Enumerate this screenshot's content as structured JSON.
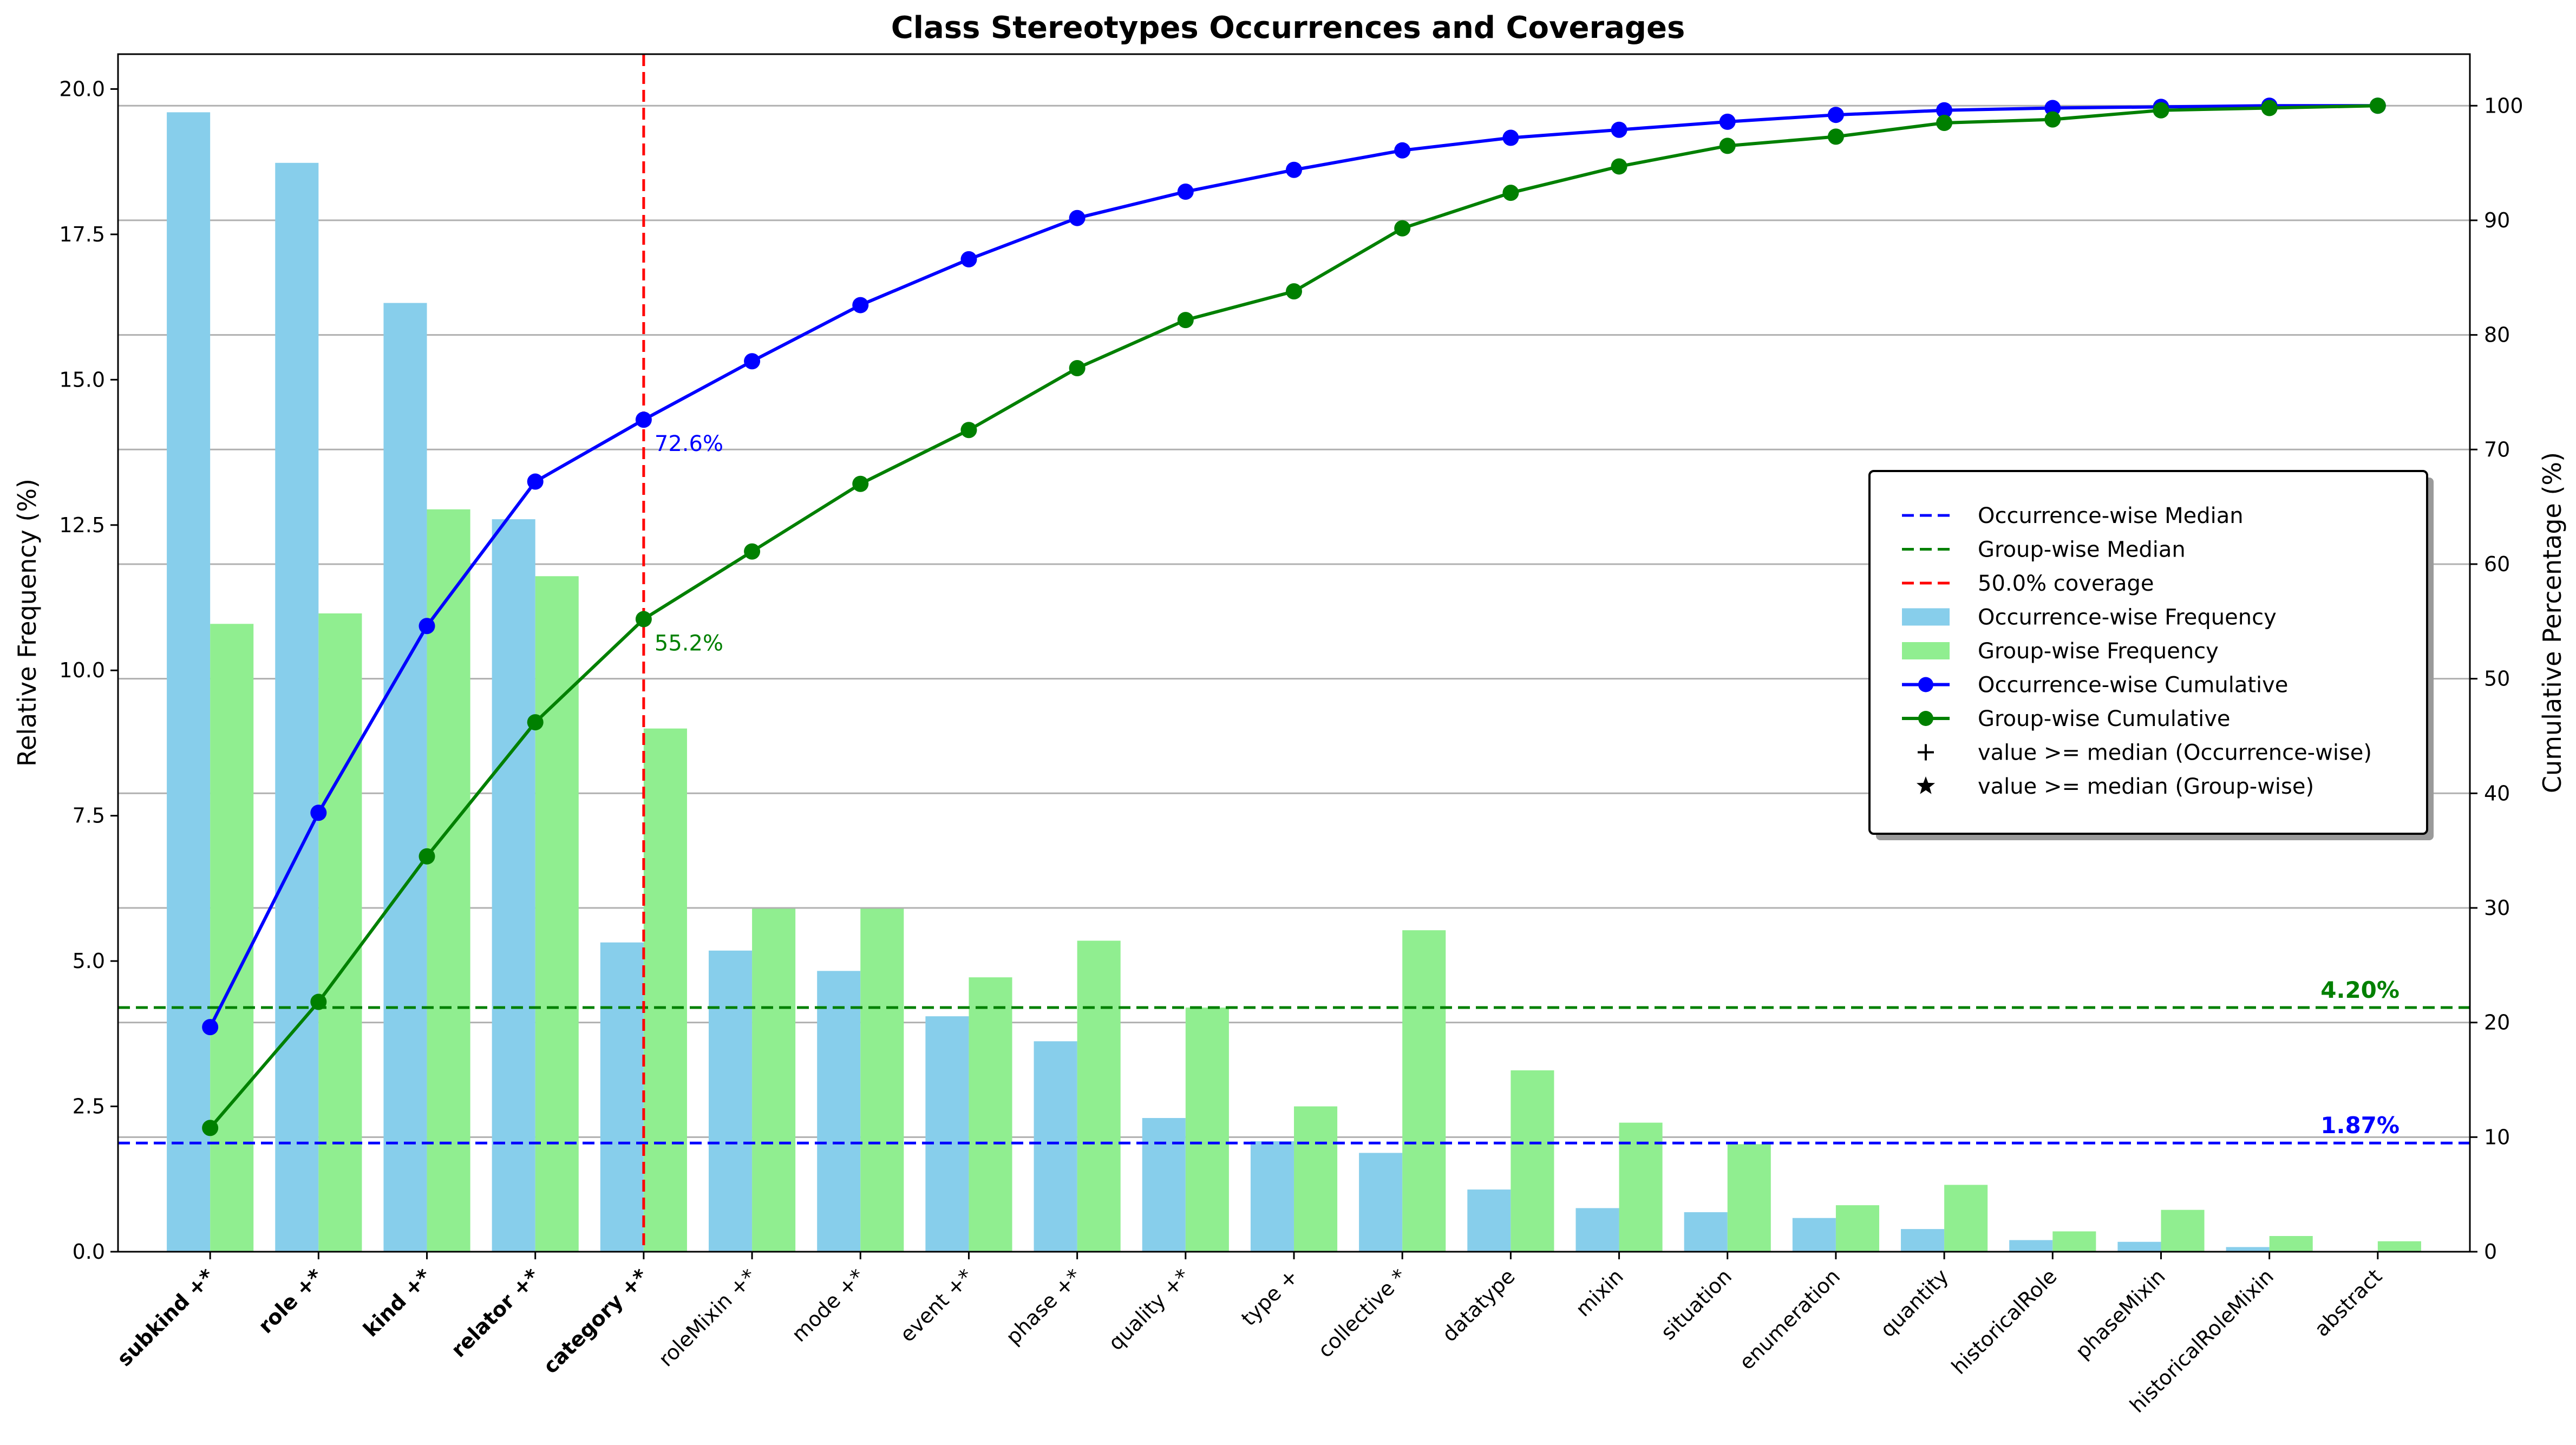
{
  "chart_data": {
    "type": "bar",
    "title": "Class Stereotypes Occurrences and Coverages",
    "ylabel": "Relative Frequency (%)",
    "y2label": "Cumulative Percentage (%)",
    "ylim": [
      0,
      20.6
    ],
    "y2lim": [
      0,
      104.5
    ],
    "yticks": [
      0.0,
      2.5,
      5.0,
      7.5,
      10.0,
      12.5,
      15.0,
      17.5,
      20.0
    ],
    "y2ticks": [
      0,
      10,
      20,
      30,
      40,
      50,
      60,
      70,
      80,
      90,
      100
    ],
    "grid": "horizontal lines on right axis",
    "categories": [
      "subkind +*",
      "role +*",
      "kind +*",
      "relator +*",
      "category +*",
      "roleMixin +*",
      "mode +*",
      "event +*",
      "phase +*",
      "quality +*",
      "type +",
      "collective *",
      "datatype",
      "mixin",
      "situation",
      "enumeration",
      "quantity",
      "historicalRole",
      "phaseMixin",
      "historicalRoleMixin",
      "abstract"
    ],
    "bold_categories": [
      "subkind +*",
      "role +*",
      "kind +*",
      "relator +*",
      "category +*"
    ],
    "series": [
      {
        "name": "Occurrence-wise Frequency",
        "kind": "bar",
        "color": "#87ceeb",
        "values": [
          19.6,
          18.73,
          16.32,
          12.6,
          5.32,
          5.18,
          4.83,
          4.05,
          3.62,
          2.3,
          1.9,
          1.7,
          1.07,
          0.75,
          0.68,
          0.58,
          0.39,
          0.2,
          0.17,
          0.08,
          0.0
        ]
      },
      {
        "name": "Group-wise Frequency",
        "kind": "bar",
        "color": "#90ee90",
        "values": [
          10.8,
          10.98,
          12.77,
          11.62,
          9.0,
          5.9,
          5.9,
          4.72,
          5.35,
          4.2,
          2.5,
          5.53,
          3.12,
          2.22,
          1.85,
          0.8,
          1.15,
          0.35,
          0.72,
          0.27,
          0.18
        ]
      },
      {
        "name": "Occurrence-wise Cumulative",
        "kind": "line",
        "axis": "right",
        "color": "#0000ff",
        "values": [
          19.6,
          38.3,
          54.6,
          67.2,
          72.6,
          77.7,
          82.6,
          86.6,
          90.2,
          92.5,
          94.4,
          96.1,
          97.2,
          97.9,
          98.6,
          99.2,
          99.6,
          99.8,
          99.9,
          100.0,
          100.0
        ]
      },
      {
        "name": "Group-wise Cumulative",
        "kind": "line",
        "axis": "right",
        "color": "#008000",
        "values": [
          10.8,
          21.8,
          34.5,
          46.2,
          55.2,
          61.1,
          67.0,
          71.7,
          77.1,
          81.3,
          83.8,
          89.3,
          92.4,
          94.7,
          96.5,
          97.3,
          98.5,
          98.8,
          99.6,
          99.8,
          100.0
        ]
      }
    ],
    "medians": [
      {
        "name": "Occurrence-wise Median",
        "value": 1.87,
        "label": "1.87%",
        "color": "#0000ff"
      },
      {
        "name": "Group-wise Median",
        "value": 4.2,
        "label": "4.20%",
        "color": "#008000"
      }
    ],
    "coverage_line": {
      "name": "50.0% coverage",
      "category_index": 4,
      "color": "#ff0000"
    },
    "annotations": [
      {
        "text": "72.6%",
        "category_index": 4,
        "value": 72.6,
        "color": "#0000ff"
      },
      {
        "text": "55.2%",
        "category_index": 4,
        "value": 55.2,
        "color": "#008000"
      }
    ],
    "legend": {
      "placement": "center-right",
      "entries": [
        {
          "label": "Occurrence-wise Median",
          "marker": "dash",
          "color": "#0000ff"
        },
        {
          "label": "Group-wise Median",
          "marker": "dash",
          "color": "#008000"
        },
        {
          "label": "50.0% coverage",
          "marker": "dash",
          "color": "#ff0000"
        },
        {
          "label": "Occurrence-wise Frequency",
          "marker": "patch",
          "color": "#87ceeb"
        },
        {
          "label": "Group-wise Frequency",
          "marker": "patch",
          "color": "#90ee90"
        },
        {
          "label": "Occurrence-wise Cumulative",
          "marker": "line-dot",
          "color": "#0000ff"
        },
        {
          "label": "Group-wise Cumulative",
          "marker": "line-dot",
          "color": "#008000"
        },
        {
          "label": "value >= median (Occurrence-wise)",
          "marker": "plus",
          "color": "#000000"
        },
        {
          "label": "value >= median (Group-wise)",
          "marker": "star",
          "color": "#000000"
        }
      ]
    }
  }
}
